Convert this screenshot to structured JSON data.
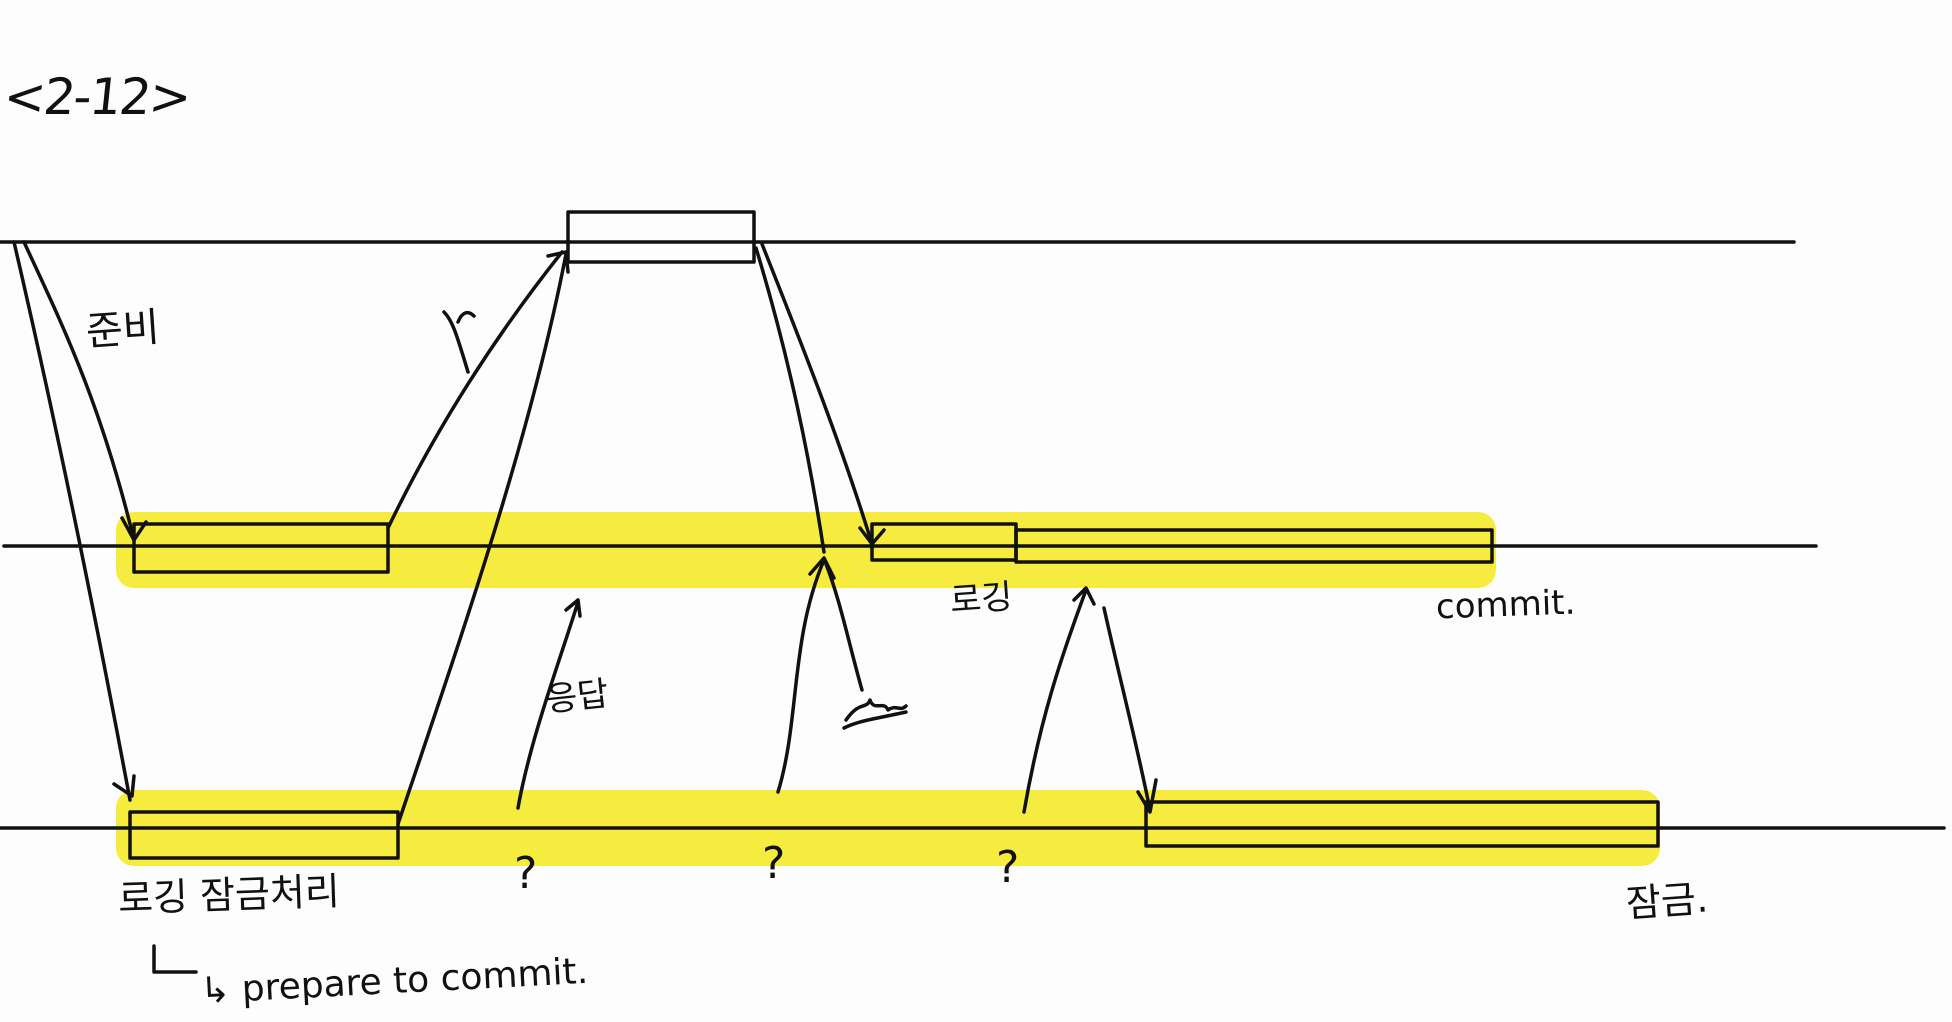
{
  "title": "<2-12>",
  "labels": {
    "prepare": "준비",
    "ack": "응답",
    "logging_mid": "로깅",
    "commit_mid": "commit.",
    "logging_lock": "로깅 잠금처리",
    "prepare_to_commit": "↳ prepare to commit.",
    "lock": "잠금.",
    "question": "?"
  },
  "colors": {
    "ink": "#111111",
    "highlight": "#f6ec3f",
    "background": "#fdfdfd"
  }
}
